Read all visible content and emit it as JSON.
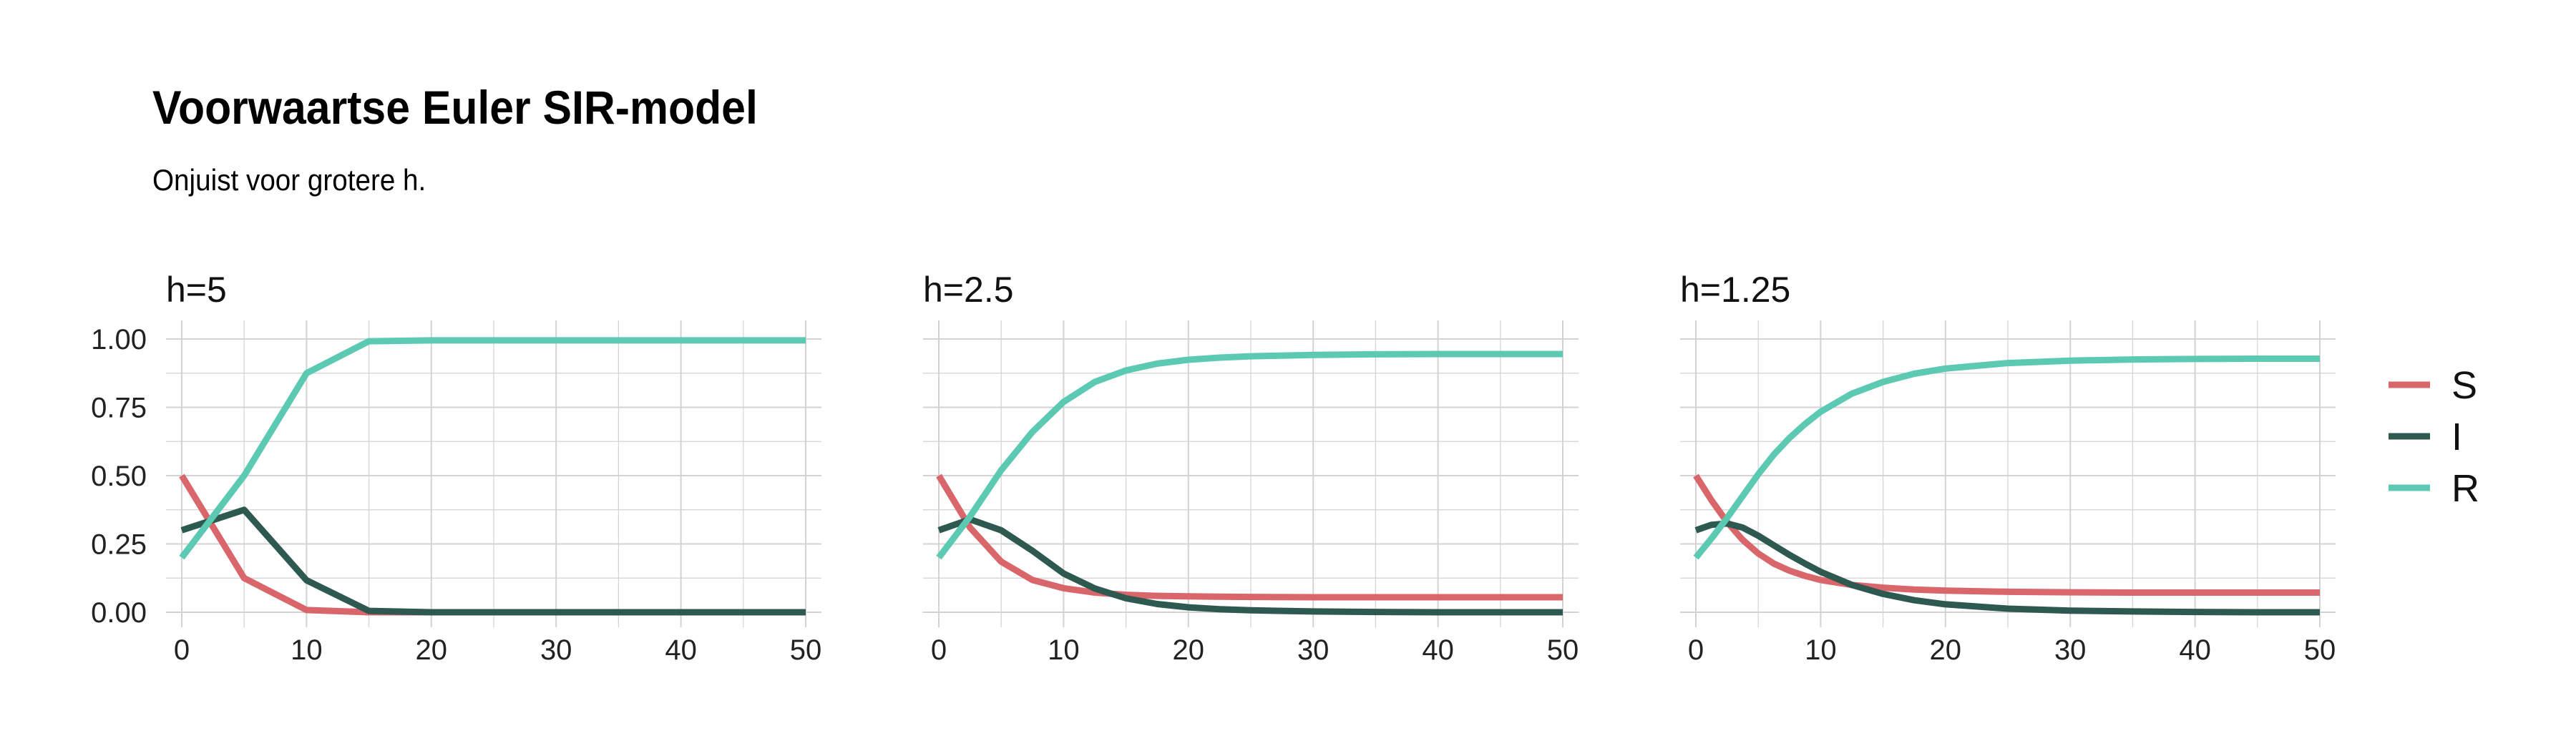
{
  "title": "Voorwaartse Euler SIR-model",
  "subtitle": "Onjuist voor grotere h.",
  "colors": {
    "S": "#d9666b",
    "I": "#2e5951",
    "R": "#5cc9b3",
    "grid": "#d3d3d3",
    "text": "#222222"
  },
  "legend": {
    "position": "right",
    "items": [
      "S",
      "I",
      "R"
    ]
  },
  "chart_data": [
    {
      "type": "line",
      "panel_title": "h=5",
      "xlim": [
        0,
        50
      ],
      "ylim": [
        0,
        1
      ],
      "xticks": [
        0,
        10,
        20,
        30,
        40,
        50
      ],
      "yticks": [
        "0.00",
        "0.25",
        "0.50",
        "0.75",
        "1.00"
      ],
      "grid": true,
      "series": [
        {
          "name": "S",
          "x": [
            0,
            5,
            10,
            15,
            20,
            25,
            30,
            35,
            40,
            45,
            50
          ],
          "y": [
            0.5,
            0.125,
            0.008,
            0.0,
            0.0,
            0.0,
            0.0,
            0.0,
            0.0,
            0.0,
            0.0
          ]
        },
        {
          "name": "I",
          "x": [
            0,
            5,
            10,
            15,
            20,
            25,
            30,
            35,
            40,
            45,
            50
          ],
          "y": [
            0.3,
            0.375,
            0.117,
            0.005,
            0.0,
            0.0,
            0.0,
            0.0,
            0.0,
            0.0,
            0.0
          ]
        },
        {
          "name": "R",
          "x": [
            0,
            5,
            10,
            15,
            20,
            25,
            30,
            35,
            40,
            45,
            50
          ],
          "y": [
            0.2,
            0.5,
            0.875,
            0.992,
            0.995,
            0.995,
            0.995,
            0.995,
            0.995,
            0.995,
            0.995
          ]
        }
      ]
    },
    {
      "type": "line",
      "panel_title": "h=2.5",
      "xlim": [
        0,
        50
      ],
      "ylim": [
        0,
        1
      ],
      "xticks": [
        0,
        10,
        20,
        30,
        40,
        50
      ],
      "yticks": [
        "0.00",
        "0.25",
        "0.50",
        "0.75",
        "1.00"
      ],
      "grid": true,
      "series": [
        {
          "name": "S",
          "x": [
            0,
            2.5,
            5,
            7.5,
            10,
            12.5,
            15,
            17.5,
            20,
            22.5,
            25,
            30,
            35,
            40,
            45,
            50
          ],
          "y": [
            0.5,
            0.31,
            0.185,
            0.118,
            0.088,
            0.072,
            0.064,
            0.06,
            0.058,
            0.057,
            0.056,
            0.055,
            0.055,
            0.055,
            0.055,
            0.055
          ]
        },
        {
          "name": "I",
          "x": [
            0,
            2.5,
            5,
            7.5,
            10,
            12.5,
            15,
            17.5,
            20,
            22.5,
            25,
            30,
            35,
            40,
            45,
            50
          ],
          "y": [
            0.3,
            0.34,
            0.3,
            0.225,
            0.142,
            0.087,
            0.051,
            0.03,
            0.018,
            0.011,
            0.007,
            0.003,
            0.001,
            0.0,
            0.0,
            0.0
          ]
        },
        {
          "name": "R",
          "x": [
            0,
            2.5,
            5,
            7.5,
            10,
            12.5,
            15,
            17.5,
            20,
            22.5,
            25,
            30,
            35,
            40,
            45,
            50
          ],
          "y": [
            0.2,
            0.35,
            0.52,
            0.66,
            0.77,
            0.843,
            0.885,
            0.91,
            0.924,
            0.932,
            0.937,
            0.942,
            0.944,
            0.945,
            0.945,
            0.945
          ]
        }
      ]
    },
    {
      "type": "line",
      "panel_title": "h=1.25",
      "xlim": [
        0,
        50
      ],
      "ylim": [
        0,
        1
      ],
      "xticks": [
        0,
        10,
        20,
        30,
        40,
        50
      ],
      "yticks": [
        "0.00",
        "0.25",
        "0.50",
        "0.75",
        "1.00"
      ],
      "grid": true,
      "series": [
        {
          "name": "S",
          "x": [
            0,
            1.25,
            2.5,
            3.75,
            5,
            6.25,
            7.5,
            8.75,
            10,
            12.5,
            15,
            17.5,
            20,
            25,
            30,
            35,
            40,
            45,
            50
          ],
          "y": [
            0.5,
            0.41,
            0.33,
            0.265,
            0.215,
            0.178,
            0.152,
            0.133,
            0.118,
            0.1,
            0.09,
            0.083,
            0.079,
            0.075,
            0.073,
            0.072,
            0.072,
            0.072,
            0.072
          ]
        },
        {
          "name": "I",
          "x": [
            0,
            1.25,
            2.5,
            3.75,
            5,
            6.25,
            7.5,
            8.75,
            10,
            12.5,
            15,
            17.5,
            20,
            25,
            30,
            35,
            40,
            45,
            50
          ],
          "y": [
            0.3,
            0.32,
            0.325,
            0.31,
            0.28,
            0.245,
            0.21,
            0.178,
            0.148,
            0.1,
            0.067,
            0.044,
            0.029,
            0.013,
            0.006,
            0.003,
            0.001,
            0.0,
            0.0
          ]
        },
        {
          "name": "R",
          "x": [
            0,
            1.25,
            2.5,
            3.75,
            5,
            6.25,
            7.5,
            8.75,
            10,
            12.5,
            15,
            17.5,
            20,
            25,
            30,
            35,
            40,
            45,
            50
          ],
          "y": [
            0.2,
            0.27,
            0.345,
            0.425,
            0.505,
            0.577,
            0.638,
            0.689,
            0.734,
            0.8,
            0.843,
            0.873,
            0.892,
            0.912,
            0.921,
            0.925,
            0.927,
            0.928,
            0.928
          ]
        }
      ]
    }
  ]
}
